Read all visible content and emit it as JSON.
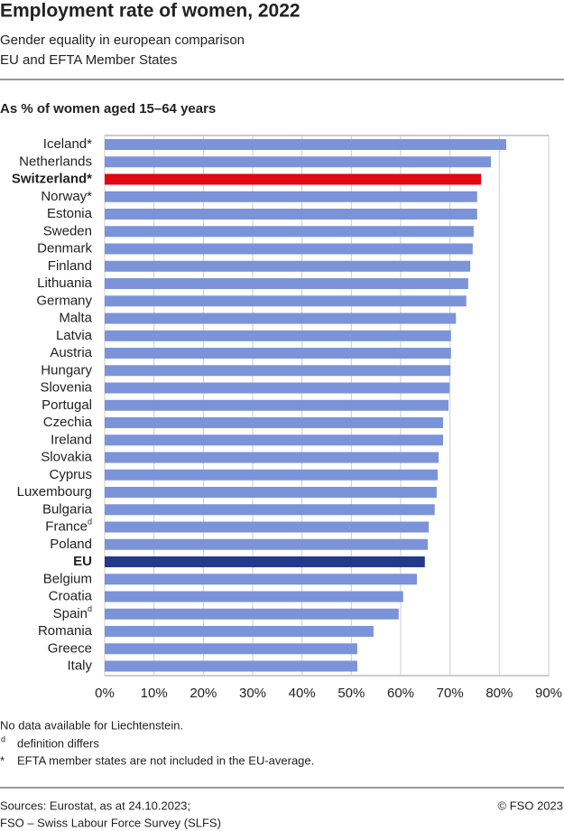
{
  "chart_data": {
    "type": "hbar",
    "title": "Employment rate of women, 2022",
    "subtitle": [
      "Gender equality in european comparison",
      "EU and EFTA Member States"
    ],
    "axis_label": "As % of women aged 15–64 years",
    "categories": [
      "Iceland*",
      "Netherlands",
      "Switzerland*",
      "Norway*",
      "Estonia",
      "Sweden",
      "Denmark",
      "Finland",
      "Lithuania",
      "Germany",
      "Malta",
      "Latvia",
      "Austria",
      "Hungary",
      "Slovenia",
      "Portugal",
      "Czechia",
      "Ireland",
      "Slovakia",
      "Cyprus",
      "Luxembourg",
      "Bulgaria",
      "France",
      "Poland",
      "EU",
      "Belgium",
      "Croatia",
      "Spain",
      "Romania",
      "Greece",
      "Italy"
    ],
    "category_footnotes": [
      null,
      null,
      null,
      null,
      null,
      null,
      null,
      null,
      null,
      null,
      null,
      null,
      null,
      null,
      null,
      null,
      null,
      null,
      null,
      null,
      null,
      null,
      "d",
      null,
      null,
      null,
      null,
      "d",
      null,
      null,
      null
    ],
    "values": [
      81.4,
      78.3,
      76.3,
      75.5,
      75.5,
      74.8,
      74.6,
      74.1,
      73.7,
      73.3,
      71.2,
      70.2,
      70.2,
      70.1,
      69.9,
      69.7,
      68.6,
      68.6,
      67.7,
      67.5,
      67.3,
      66.9,
      65.7,
      65.5,
      64.9,
      63.3,
      60.5,
      59.6,
      54.5,
      51.2,
      51.2
    ],
    "color": "#7b93d9",
    "colors": [
      "#7b93d9",
      "#7b93d9",
      "#e30613",
      "#7b93d9",
      "#7b93d9",
      "#7b93d9",
      "#7b93d9",
      "#7b93d9",
      "#7b93d9",
      "#7b93d9",
      "#7b93d9",
      "#7b93d9",
      "#7b93d9",
      "#7b93d9",
      "#7b93d9",
      "#7b93d9",
      "#7b93d9",
      "#7b93d9",
      "#7b93d9",
      "#7b93d9",
      "#7b93d9",
      "#7b93d9",
      "#7b93d9",
      "#7b93d9",
      "#233a8b",
      "#7b93d9",
      "#7b93d9",
      "#7b93d9",
      "#7b93d9",
      "#7b93d9",
      "#7b93d9"
    ],
    "xlim": [
      0,
      90
    ],
    "xticks": [
      {
        "value": 0,
        "label": "0%"
      },
      {
        "value": 10,
        "label": "10%"
      },
      {
        "value": 20,
        "label": "20%"
      },
      {
        "value": 30,
        "label": "30%"
      },
      {
        "value": 40,
        "label": "40%"
      },
      {
        "value": 50,
        "label": "50%"
      },
      {
        "value": 60,
        "label": "60%"
      },
      {
        "value": 70,
        "label": "70%"
      },
      {
        "value": 80,
        "label": "80%"
      },
      {
        "value": 90,
        "label": "90%"
      }
    ],
    "grid": true,
    "notes": [
      {
        "text": "No data available for Liechtenstein."
      },
      {
        "mark": "d",
        "text": "definition differs"
      },
      {
        "mark": "*",
        "text": "EFTA member states are not included in the EU-average."
      }
    ],
    "sources": [
      "Sources: Eurostat, as at 24.10.2023;",
      "FSO – Swiss Labour Force Survey (SLFS)"
    ],
    "copyright": "© FSO 2023"
  }
}
